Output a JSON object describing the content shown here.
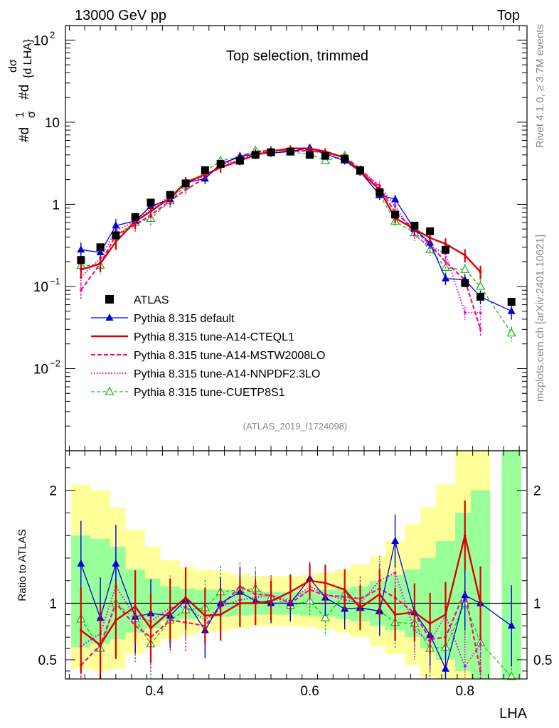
{
  "header": {
    "left": "13000 GeV pp",
    "right": "Top"
  },
  "side_labels": {
    "rivet": "Rivet 4.1.0, ≥ 3.7M events",
    "mcplots": "mcplots.cern.ch [arXiv:2401.10621]"
  },
  "analysis_id": "(ATLAS_2019_I1724098)",
  "colors": {
    "atlas": "#000000",
    "default": "#0000dd",
    "cteql1": "#dd0000",
    "mstw": "#ee1188",
    "nnpdf": "#dd00dd",
    "cuetp": "#22bb22",
    "band_green": "#99ff99",
    "band_yellow": "#ffff99"
  },
  "chart_data": [
    {
      "type": "line",
      "title": "Top selection, trimmed",
      "ylabel": "1/σ dσ/d LHA",
      "ylabel_parts": [
        "#d",
        "1",
        "σ",
        "#d",
        "dσ",
        "{d LHA}"
      ],
      "yscale": "log",
      "xlim": [
        0.285,
        0.88
      ],
      "ylim": [
        0.001,
        150
      ],
      "y_ticks": [
        {
          "value": 0.01,
          "base": "10",
          "exp": "−2"
        },
        {
          "value": 0.1,
          "base": "10",
          "exp": "−1"
        },
        {
          "value": 1,
          "base": "1",
          "exp": ""
        },
        {
          "value": 10,
          "base": "10",
          "exp": ""
        },
        {
          "value": 100,
          "base": "10",
          "exp": "2"
        }
      ],
      "x": [
        0.305,
        0.33,
        0.35,
        0.375,
        0.395,
        0.42,
        0.44,
        0.465,
        0.485,
        0.51,
        0.53,
        0.55,
        0.575,
        0.6,
        0.62,
        0.645,
        0.665,
        0.69,
        0.71,
        0.735,
        0.755,
        0.775,
        0.8,
        0.82,
        0.86
      ],
      "series": [
        {
          "name": "ATLAS",
          "key": "atlas",
          "style": "square",
          "values": [
            0.21,
            0.3,
            0.42,
            0.7,
            1.05,
            1.3,
            1.8,
            2.6,
            3.1,
            3.4,
            4.0,
            4.3,
            4.4,
            4.0,
            3.9,
            3.6,
            2.6,
            1.4,
            0.75,
            0.55,
            0.47,
            0.28,
            0.11,
            0.075,
            0.065
          ]
        },
        {
          "name": "Pythia 8.315 default",
          "key": "default",
          "style": "solid-triangle",
          "values": [
            0.28,
            0.26,
            0.55,
            0.63,
            0.95,
            1.15,
            1.85,
            2.05,
            3.1,
            3.8,
            4.1,
            4.2,
            4.4,
            4.9,
            4.1,
            3.4,
            2.5,
            1.3,
            1.15,
            0.5,
            0.34,
            0.125,
            0.12,
            0.075,
            0.05
          ]
        },
        {
          "name": "Pythia 8.315 tune-A14-CTEQL1",
          "key": "cteql1",
          "style": "thick-solid",
          "values": [
            0.16,
            0.19,
            0.35,
            0.62,
            0.82,
            1.2,
            1.85,
            2.3,
            2.8,
            3.4,
            4.0,
            4.4,
            4.8,
            4.8,
            4.4,
            3.7,
            2.5,
            1.5,
            0.68,
            0.5,
            0.39,
            0.33,
            0.24,
            0.15,
            null
          ]
        },
        {
          "name": "Pythia 8.315 tune-A14-MSTW2008LO",
          "key": "mstw",
          "style": "dashed",
          "values": [
            0.09,
            0.19,
            0.42,
            0.56,
            0.74,
            1.1,
            1.5,
            2.1,
            3.0,
            3.9,
            4.3,
            4.6,
            4.4,
            4.5,
            4.2,
            3.8,
            2.7,
            1.6,
            0.8,
            0.5,
            0.32,
            0.2,
            0.12,
            0.03,
            null
          ]
        },
        {
          "name": "Pythia 8.315 tune-A14-NNPDF2.3LO",
          "key": "nnpdf",
          "style": "dotted",
          "values": [
            0.13,
            0.22,
            0.48,
            0.62,
            0.88,
            1.25,
            1.75,
            2.2,
            3.0,
            3.5,
            4.2,
            4.6,
            4.5,
            4.6,
            4.2,
            3.7,
            2.6,
            1.7,
            0.95,
            0.42,
            0.31,
            0.25,
            0.048,
            0.048,
            null
          ]
        },
        {
          "name": "Pythia 8.315 tune-CUETP8S1",
          "key": "cuetp",
          "style": "dashed-open-triangle",
          "values": [
            0.18,
            0.18,
            0.42,
            0.6,
            0.67,
            1.1,
            1.7,
            2.5,
            3.4,
            3.8,
            4.5,
            4.5,
            4.3,
            4.1,
            3.4,
            3.9,
            2.5,
            1.3,
            0.62,
            0.45,
            0.28,
            0.17,
            0.16,
            0.1,
            0.027
          ]
        }
      ]
    },
    {
      "type": "line",
      "title": "",
      "ylabel": "Ratio to ATLAS",
      "xlabel": "LHA",
      "xlim": [
        0.285,
        0.88
      ],
      "ylim": [
        0.33,
        2.35
      ],
      "y_ticks": [
        "0.5",
        "1",
        "2"
      ],
      "y_tick_values": [
        0.5,
        1,
        2
      ],
      "x_ticks": [
        "0.4",
        "0.6",
        "0.8"
      ],
      "x_tick_values": [
        0.4,
        0.6,
        0.8
      ],
      "reference_line": 1,
      "bands": {
        "green": [
          [
            0.305,
            0.61,
            1.6
          ],
          [
            0.33,
            0.64,
            1.57
          ],
          [
            0.35,
            0.68,
            1.5
          ],
          [
            0.375,
            0.74,
            1.3
          ],
          [
            0.395,
            0.78,
            1.22
          ],
          [
            0.42,
            0.84,
            1.15
          ],
          [
            0.44,
            0.86,
            1.13
          ],
          [
            0.465,
            0.87,
            1.12
          ],
          [
            0.485,
            0.88,
            1.12
          ],
          [
            0.51,
            0.89,
            1.11
          ],
          [
            0.53,
            0.9,
            1.1
          ],
          [
            0.55,
            0.9,
            1.1
          ],
          [
            0.575,
            0.9,
            1.1
          ],
          [
            0.6,
            0.89,
            1.11
          ],
          [
            0.62,
            0.88,
            1.12
          ],
          [
            0.645,
            0.86,
            1.13
          ],
          [
            0.665,
            0.84,
            1.15
          ],
          [
            0.69,
            0.8,
            1.2
          ],
          [
            0.71,
            0.76,
            1.25
          ],
          [
            0.735,
            0.7,
            1.3
          ],
          [
            0.755,
            0.6,
            1.4
          ],
          [
            0.775,
            0.5,
            1.55
          ],
          [
            0.8,
            0.4,
            1.8
          ],
          [
            0.82,
            0.33,
            2.0
          ],
          [
            0.86,
            0.33,
            2.35
          ]
        ],
        "yellow": [
          [
            0.305,
            0.42,
            2.05
          ],
          [
            0.33,
            0.4,
            2.0
          ],
          [
            0.35,
            0.42,
            1.85
          ],
          [
            0.375,
            0.55,
            1.65
          ],
          [
            0.395,
            0.62,
            1.5
          ],
          [
            0.42,
            0.68,
            1.38
          ],
          [
            0.44,
            0.72,
            1.32
          ],
          [
            0.465,
            0.74,
            1.3
          ],
          [
            0.485,
            0.76,
            1.28
          ],
          [
            0.51,
            0.78,
            1.26
          ],
          [
            0.53,
            0.8,
            1.24
          ],
          [
            0.55,
            0.8,
            1.24
          ],
          [
            0.575,
            0.8,
            1.24
          ],
          [
            0.6,
            0.79,
            1.25
          ],
          [
            0.62,
            0.77,
            1.27
          ],
          [
            0.645,
            0.74,
            1.3
          ],
          [
            0.665,
            0.7,
            1.34
          ],
          [
            0.69,
            0.62,
            1.42
          ],
          [
            0.71,
            0.55,
            1.55
          ],
          [
            0.735,
            0.45,
            1.7
          ],
          [
            0.755,
            0.35,
            1.85
          ],
          [
            0.775,
            0.33,
            2.05
          ],
          [
            0.8,
            0.33,
            2.35
          ],
          [
            0.82,
            0.33,
            2.35
          ],
          [
            0.86,
            0.33,
            2.35
          ]
        ]
      },
      "x": [
        0.305,
        0.33,
        0.35,
        0.375,
        0.395,
        0.42,
        0.44,
        0.465,
        0.485,
        0.51,
        0.53,
        0.55,
        0.575,
        0.6,
        0.62,
        0.645,
        0.665,
        0.69,
        0.71,
        0.735,
        0.755,
        0.775,
        0.8,
        0.82,
        0.86
      ],
      "series": [
        {
          "name": "Pythia 8.315 default",
          "key": "default",
          "style": "solid-triangle",
          "values": [
            1.35,
            0.87,
            1.35,
            0.88,
            0.91,
            0.89,
            1.03,
            0.76,
            1.0,
            1.1,
            1.02,
            1.0,
            1.0,
            1.22,
            1.05,
            0.95,
            0.96,
            0.93,
            1.55,
            0.92,
            0.72,
            0.42,
            1.07,
            1.0,
            0.8
          ]
        },
        {
          "name": "Pythia 8.315 tune-A14-CTEQL1",
          "key": "cteql1",
          "style": "thick-solid",
          "values": [
            0.76,
            0.63,
            0.85,
            0.97,
            0.78,
            0.93,
            1.05,
            0.89,
            0.9,
            1.0,
            1.0,
            1.02,
            1.1,
            1.2,
            1.18,
            1.12,
            0.96,
            1.08,
            0.9,
            0.92,
            0.82,
            0.9,
            1.6,
            1.0,
            null
          ]
        },
        {
          "name": "Pythia 8.315 tune-A14-MSTW2008LO",
          "key": "mstw",
          "style": "dashed",
          "values": [
            0.45,
            0.63,
            1.0,
            0.8,
            0.7,
            0.85,
            0.83,
            0.8,
            0.97,
            1.15,
            1.08,
            1.07,
            1.0,
            1.12,
            1.07,
            1.06,
            1.04,
            1.13,
            1.05,
            0.91,
            0.68,
            0.7,
            1.1,
            0.4,
            null
          ]
        },
        {
          "name": "Pythia 8.315 tune-A14-NNPDF2.3LO",
          "key": "nnpdf",
          "style": "dotted",
          "values": [
            0.62,
            0.73,
            1.15,
            0.88,
            0.84,
            0.96,
            0.97,
            0.85,
            0.97,
            1.03,
            1.05,
            1.07,
            1.02,
            1.15,
            1.08,
            1.03,
            1.0,
            1.2,
            1.27,
            0.76,
            0.66,
            0.89,
            0.44,
            0.64,
            null
          ]
        },
        {
          "name": "Pythia 8.315 tune-CUETP8S1",
          "key": "cuetp",
          "style": "dashed-open-triangle",
          "values": [
            0.86,
            0.6,
            1.0,
            0.86,
            0.64,
            0.85,
            0.94,
            0.96,
            1.1,
            1.12,
            1.13,
            1.05,
            0.98,
            1.02,
            0.87,
            1.08,
            0.96,
            0.93,
            0.83,
            0.82,
            0.6,
            0.61,
            1.0,
            0.65,
            0.35
          ]
        }
      ]
    }
  ]
}
